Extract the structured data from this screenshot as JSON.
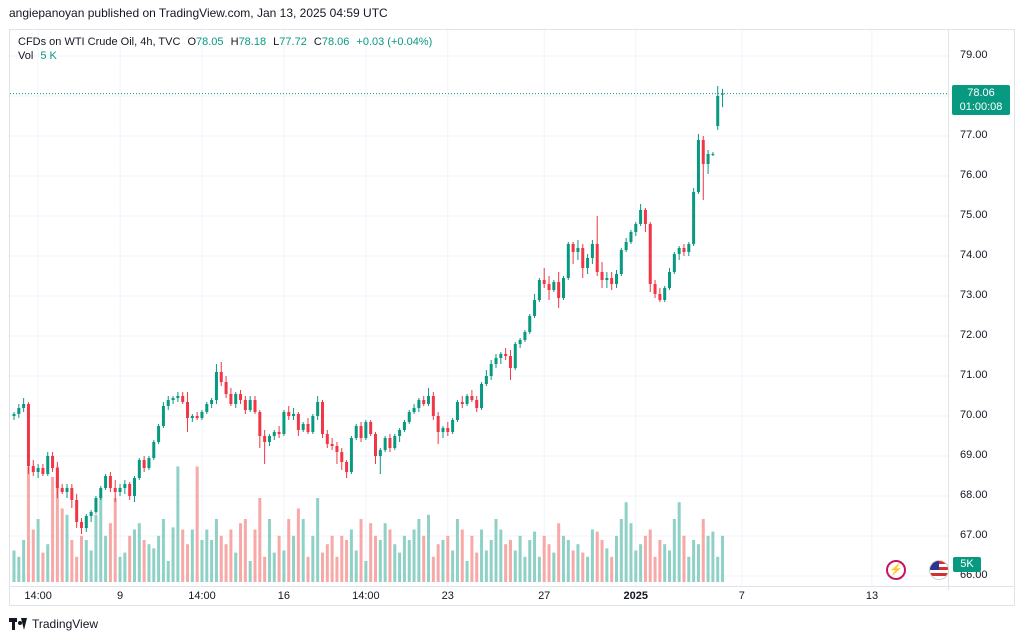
{
  "header": {
    "published_line": "angiepanoyan published on TradingView.com, Jan 13, 2025 04:59 UTC"
  },
  "legend": {
    "symbol": "CFDs on WTI Crude Oil, 4h, TVC",
    "o_label": "O",
    "o_value": "78.05",
    "h_label": "H",
    "h_value": "78.18",
    "l_label": "L",
    "l_value": "77.72",
    "c_label": "C",
    "c_value": "78.06",
    "change": "+0.03 (+0.04%)",
    "vol_label": "Vol",
    "vol_value": "5 K"
  },
  "price_tag": {
    "price": "78.06",
    "countdown": "01:00:08"
  },
  "volume_tag": "5K",
  "footer": {
    "brand": "TradingView"
  },
  "colors": {
    "up": "#089981",
    "down": "#f23645",
    "vol_up": "#8fd1c6",
    "vol_down": "#f7a9a7",
    "grid": "#f0f3fa"
  },
  "icons": [
    "tradingview-logo-icon",
    "us-flag-icon",
    "lightning-icon"
  ],
  "chart_data": {
    "type": "candlestick",
    "symbol": "CFDs on WTI Crude Oil",
    "timeframe": "4h",
    "y_ticks": [
      "79.00",
      "78.00",
      "77.00",
      "76.00",
      "75.00",
      "74.00",
      "73.00",
      "72.00",
      "71.00",
      "70.00",
      "69.00",
      "68.00",
      "67.00",
      "66.00"
    ],
    "ylim": [
      66.0,
      79.5
    ],
    "x_ticks": [
      {
        "label": "14:00",
        "bar": 5,
        "bold": false
      },
      {
        "label": "9",
        "bar": 22,
        "bold": false
      },
      {
        "label": "14:00",
        "bar": 39,
        "bold": false
      },
      {
        "label": "16",
        "bar": 56,
        "bold": false
      },
      {
        "label": "14:00",
        "bar": 73,
        "bold": false
      },
      {
        "label": "23",
        "bar": 90,
        "bold": false
      },
      {
        "label": "27",
        "bar": 110,
        "bold": false
      },
      {
        "label": "2025",
        "bar": 129,
        "bold": true
      },
      {
        "label": "7",
        "bar": 151,
        "bold": false
      },
      {
        "label": "13",
        "bar": 178,
        "bold": false
      }
    ],
    "last_price": 78.06,
    "candles": [
      [
        70.0,
        70.1,
        69.9,
        70.05
      ],
      [
        70.05,
        70.3,
        69.95,
        70.2
      ],
      [
        70.2,
        70.45,
        70.1,
        70.3
      ],
      [
        70.3,
        70.35,
        68.55,
        68.75
      ],
      [
        68.75,
        68.9,
        68.5,
        68.6
      ],
      [
        68.6,
        68.8,
        68.45,
        68.7
      ],
      [
        68.7,
        68.8,
        68.5,
        68.55
      ],
      [
        68.55,
        69.1,
        68.5,
        69.0
      ],
      [
        69.0,
        69.1,
        68.6,
        68.7
      ],
      [
        68.7,
        68.85,
        67.95,
        68.2
      ],
      [
        68.2,
        68.3,
        68.05,
        68.1
      ],
      [
        68.1,
        68.3,
        67.95,
        68.2
      ],
      [
        68.2,
        68.3,
        67.7,
        67.9
      ],
      [
        67.9,
        68.05,
        67.2,
        67.35
      ],
      [
        67.35,
        67.45,
        67.05,
        67.2
      ],
      [
        67.2,
        67.55,
        67.1,
        67.5
      ],
      [
        67.5,
        67.65,
        67.35,
        67.6
      ],
      [
        67.6,
        68.0,
        67.55,
        67.95
      ],
      [
        67.95,
        68.25,
        67.9,
        68.2
      ],
      [
        68.2,
        68.55,
        68.15,
        68.5
      ],
      [
        68.5,
        68.6,
        68.1,
        68.2
      ],
      [
        68.2,
        68.4,
        67.85,
        68.1
      ],
      [
        68.1,
        68.3,
        68.0,
        68.2
      ],
      [
        68.2,
        68.4,
        68.05,
        68.3
      ],
      [
        68.3,
        68.35,
        67.9,
        68.0
      ],
      [
        68.0,
        68.5,
        67.85,
        68.45
      ],
      [
        68.45,
        68.95,
        68.4,
        68.9
      ],
      [
        68.9,
        69.0,
        68.6,
        68.7
      ],
      [
        68.7,
        69.0,
        68.65,
        68.95
      ],
      [
        68.95,
        69.4,
        68.9,
        69.35
      ],
      [
        69.35,
        69.8,
        69.3,
        69.75
      ],
      [
        69.75,
        70.35,
        69.7,
        70.25
      ],
      [
        70.25,
        70.5,
        70.15,
        70.4
      ],
      [
        70.4,
        70.5,
        70.3,
        70.45
      ],
      [
        70.45,
        70.6,
        70.35,
        70.5
      ],
      [
        70.5,
        70.6,
        70.3,
        70.35
      ],
      [
        70.35,
        70.6,
        69.6,
        69.95
      ],
      [
        69.95,
        70.05,
        69.85,
        70.0
      ],
      [
        70.0,
        70.1,
        69.9,
        69.95
      ],
      [
        69.95,
        70.15,
        69.9,
        70.1
      ],
      [
        70.1,
        70.35,
        70.05,
        70.3
      ],
      [
        70.3,
        70.45,
        70.2,
        70.4
      ],
      [
        70.4,
        71.3,
        70.3,
        71.1
      ],
      [
        71.1,
        71.35,
        70.75,
        70.85
      ],
      [
        70.85,
        71.0,
        70.45,
        70.55
      ],
      [
        70.55,
        70.7,
        70.25,
        70.3
      ],
      [
        70.3,
        70.6,
        70.2,
        70.55
      ],
      [
        70.55,
        70.65,
        70.3,
        70.4
      ],
      [
        70.4,
        70.5,
        70.05,
        70.15
      ],
      [
        70.15,
        70.5,
        70.1,
        70.4
      ],
      [
        70.4,
        70.5,
        70.05,
        70.1
      ],
      [
        70.1,
        70.15,
        69.2,
        69.5
      ],
      [
        69.5,
        69.65,
        68.8,
        69.35
      ],
      [
        69.35,
        69.55,
        69.25,
        69.5
      ],
      [
        69.5,
        69.65,
        69.4,
        69.6
      ],
      [
        69.6,
        69.75,
        69.45,
        69.55
      ],
      [
        69.55,
        70.15,
        69.5,
        70.1
      ],
      [
        70.1,
        70.25,
        69.9,
        70.0
      ],
      [
        70.0,
        70.2,
        69.9,
        70.05
      ],
      [
        70.05,
        70.1,
        69.5,
        69.65
      ],
      [
        69.65,
        69.85,
        69.6,
        69.8
      ],
      [
        69.8,
        69.95,
        69.55,
        69.6
      ],
      [
        69.6,
        70.05,
        69.55,
        70.0
      ],
      [
        70.0,
        70.5,
        69.9,
        70.35
      ],
      [
        70.35,
        70.4,
        69.45,
        69.55
      ],
      [
        69.55,
        69.65,
        69.2,
        69.3
      ],
      [
        69.3,
        69.45,
        69.15,
        69.25
      ],
      [
        69.25,
        69.35,
        68.8,
        69.1
      ],
      [
        69.1,
        69.2,
        68.65,
        68.85
      ],
      [
        68.85,
        68.9,
        68.45,
        68.6
      ],
      [
        68.6,
        69.5,
        68.55,
        69.45
      ],
      [
        69.45,
        69.8,
        69.4,
        69.75
      ],
      [
        69.75,
        69.85,
        69.35,
        69.45
      ],
      [
        69.45,
        69.9,
        69.4,
        69.85
      ],
      [
        69.85,
        69.9,
        69.5,
        69.55
      ],
      [
        69.55,
        69.6,
        68.8,
        69.0
      ],
      [
        69.0,
        69.2,
        68.55,
        69.15
      ],
      [
        69.15,
        69.5,
        69.1,
        69.45
      ],
      [
        69.45,
        69.55,
        69.1,
        69.2
      ],
      [
        69.2,
        69.55,
        69.15,
        69.5
      ],
      [
        69.5,
        69.7,
        69.35,
        69.65
      ],
      [
        69.65,
        69.9,
        69.6,
        69.85
      ],
      [
        69.85,
        70.15,
        69.8,
        70.1
      ],
      [
        70.1,
        70.3,
        70.05,
        70.2
      ],
      [
        70.2,
        70.45,
        70.1,
        70.4
      ],
      [
        70.4,
        70.5,
        70.25,
        70.3
      ],
      [
        70.3,
        70.7,
        70.25,
        70.5
      ],
      [
        70.5,
        70.6,
        69.9,
        70.0
      ],
      [
        70.0,
        70.1,
        69.3,
        69.6
      ],
      [
        69.6,
        69.75,
        69.45,
        69.7
      ],
      [
        69.7,
        69.85,
        69.5,
        69.6
      ],
      [
        69.6,
        69.95,
        69.55,
        69.9
      ],
      [
        69.9,
        70.4,
        69.85,
        70.35
      ],
      [
        70.35,
        70.5,
        70.2,
        70.3
      ],
      [
        70.3,
        70.55,
        70.25,
        70.5
      ],
      [
        70.5,
        70.65,
        70.35,
        70.4
      ],
      [
        70.4,
        70.5,
        70.1,
        70.2
      ],
      [
        70.2,
        70.85,
        70.15,
        70.8
      ],
      [
        70.8,
        71.15,
        70.75,
        71.0
      ],
      [
        71.0,
        71.4,
        70.9,
        71.3
      ],
      [
        71.3,
        71.55,
        71.2,
        71.45
      ],
      [
        71.45,
        71.6,
        71.3,
        71.55
      ],
      [
        71.55,
        71.7,
        71.4,
        71.5
      ],
      [
        71.5,
        71.65,
        70.9,
        71.2
      ],
      [
        71.2,
        71.85,
        71.15,
        71.8
      ],
      [
        71.8,
        71.95,
        71.7,
        71.9
      ],
      [
        71.9,
        72.15,
        71.85,
        72.1
      ],
      [
        72.1,
        72.55,
        72.05,
        72.5
      ],
      [
        72.5,
        73.05,
        72.45,
        72.9
      ],
      [
        72.9,
        73.45,
        72.85,
        73.4
      ],
      [
        73.4,
        73.7,
        73.2,
        73.3
      ],
      [
        73.3,
        73.5,
        72.9,
        73.15
      ],
      [
        73.15,
        73.4,
        73.1,
        73.35
      ],
      [
        73.35,
        73.6,
        72.7,
        72.95
      ],
      [
        72.95,
        73.5,
        72.9,
        73.45
      ],
      [
        73.45,
        74.35,
        73.4,
        74.3
      ],
      [
        74.3,
        74.35,
        73.8,
        74.1
      ],
      [
        74.1,
        74.4,
        73.9,
        74.2
      ],
      [
        74.2,
        74.3,
        73.45,
        73.7
      ],
      [
        73.7,
        74.05,
        73.55,
        73.95
      ],
      [
        73.95,
        74.4,
        73.8,
        74.3
      ],
      [
        74.3,
        75.0,
        73.5,
        73.6
      ],
      [
        73.6,
        73.85,
        73.2,
        73.4
      ],
      [
        73.4,
        73.6,
        73.2,
        73.45
      ],
      [
        73.45,
        73.6,
        73.15,
        73.3
      ],
      [
        73.3,
        73.65,
        73.2,
        73.55
      ],
      [
        73.55,
        74.2,
        73.5,
        74.15
      ],
      [
        74.15,
        74.45,
        74.1,
        74.35
      ],
      [
        74.35,
        74.65,
        74.3,
        74.6
      ],
      [
        74.6,
        74.85,
        74.5,
        74.8
      ],
      [
        74.8,
        75.3,
        74.75,
        75.15
      ],
      [
        75.15,
        75.2,
        74.6,
        74.8
      ],
      [
        74.8,
        74.85,
        73.1,
        73.3
      ],
      [
        73.3,
        73.4,
        72.95,
        73.05
      ],
      [
        73.05,
        73.2,
        72.85,
        72.9
      ],
      [
        72.9,
        73.25,
        72.85,
        73.2
      ],
      [
        73.2,
        73.7,
        73.15,
        73.6
      ],
      [
        73.6,
        74.1,
        73.55,
        74.05
      ],
      [
        74.05,
        74.25,
        73.9,
        74.2
      ],
      [
        74.2,
        74.3,
        74.0,
        74.1
      ],
      [
        74.1,
        74.35,
        74.0,
        74.3
      ],
      [
        74.3,
        75.7,
        74.25,
        75.6
      ],
      [
        75.6,
        77.05,
        75.55,
        76.9
      ],
      [
        76.9,
        77.0,
        75.4,
        76.3
      ],
      [
        76.3,
        76.65,
        76.05,
        76.55
      ],
      [
        76.55,
        76.6,
        76.5,
        76.55
      ],
      [
        77.25,
        78.25,
        77.15,
        78.0
      ],
      [
        78.05,
        78.18,
        77.72,
        78.06
      ]
    ],
    "volumes": [
      15,
      12,
      20,
      55,
      25,
      30,
      14,
      18,
      50,
      55,
      35,
      32,
      20,
      12,
      22,
      20,
      15,
      32,
      40,
      22,
      28,
      40,
      12,
      14,
      22,
      25,
      28,
      20,
      18,
      16,
      22,
      30,
      10,
      26,
      55,
      25,
      18,
      25,
      55,
      20,
      25,
      20,
      30,
      22,
      18,
      25,
      14,
      28,
      30,
      10,
      25,
      40,
      12,
      30,
      14,
      22,
      15,
      30,
      22,
      35,
      30,
      12,
      22,
      40,
      14,
      18,
      22,
      12,
      22,
      20,
      25,
      15,
      30,
      10,
      28,
      22,
      20,
      28,
      25,
      18,
      14,
      22,
      20,
      25,
      30,
      22,
      32,
      12,
      18,
      20,
      22,
      15,
      30,
      25,
      10,
      22,
      14,
      25,
      15,
      20,
      30,
      25,
      18,
      20,
      15,
      22,
      12,
      20,
      24,
      12,
      22,
      18,
      14,
      28,
      22,
      20,
      15,
      18,
      14,
      12,
      25,
      24,
      20,
      16,
      12,
      22,
      30,
      38,
      28,
      15,
      18,
      22,
      25,
      12,
      20,
      18,
      15,
      30,
      38,
      22,
      12,
      20,
      18,
      30,
      22,
      24,
      12,
      22,
      35,
      15,
      12,
      20,
      28,
      42,
      65,
      28,
      30
    ]
  }
}
